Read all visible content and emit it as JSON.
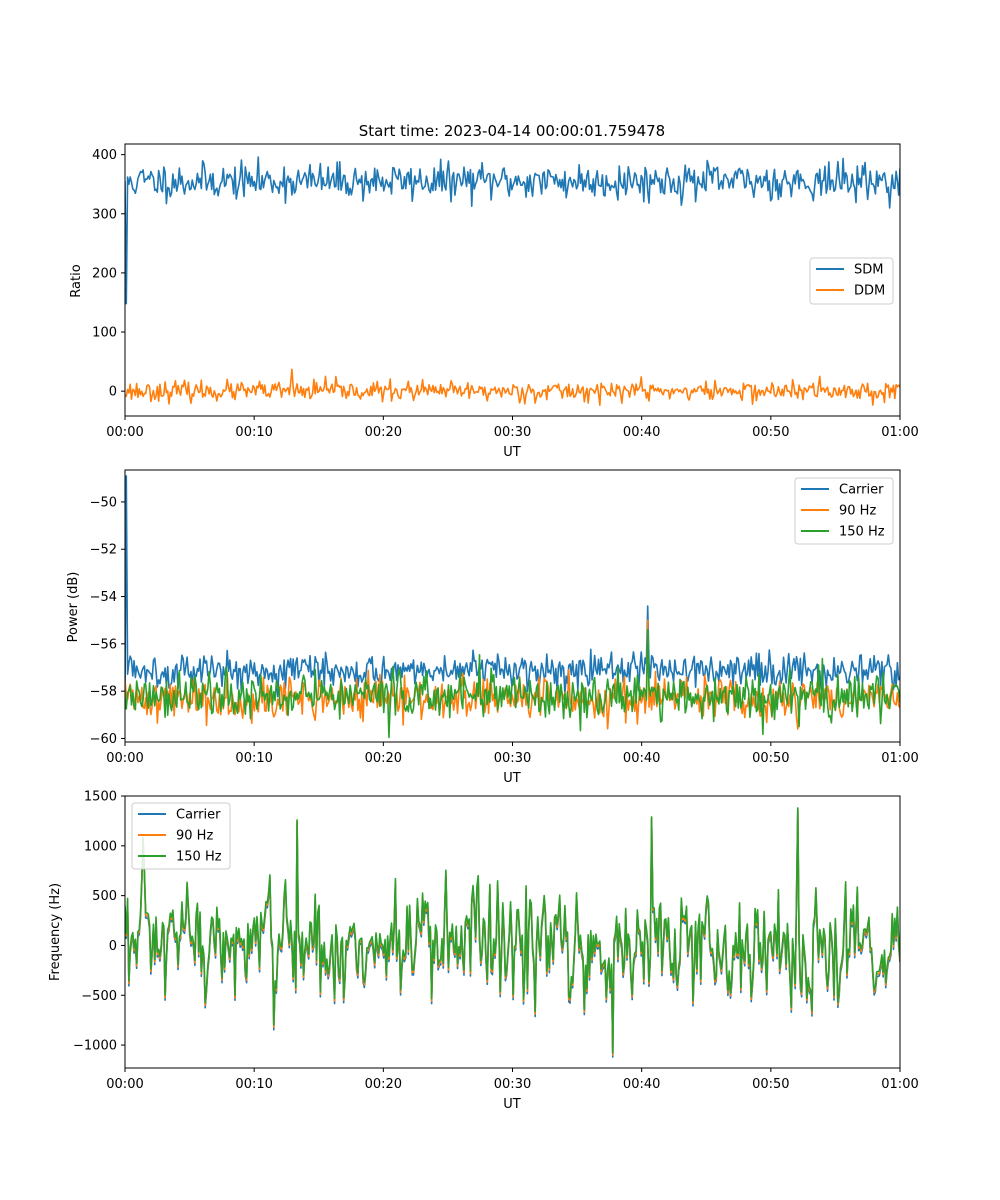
{
  "figure": {
    "title": "Start time: 2023-04-14 00:00:01.759478"
  },
  "chart_data": [
    {
      "type": "line",
      "xlabel": "UT",
      "ylabel": "Ratio",
      "xlim_minutes": [
        0,
        60
      ],
      "x_tick_labels": [
        "00:00",
        "00:10",
        "00:20",
        "00:30",
        "00:40",
        "00:50",
        "01:00"
      ],
      "ylim": [
        -42,
        418
      ],
      "y_ticks": [
        0,
        100,
        200,
        300,
        400
      ],
      "y_tick_labels": [
        "0",
        "100",
        "200",
        "300",
        "400"
      ],
      "legend": {
        "position": "center-right",
        "entries": [
          "SDM",
          "DDM"
        ]
      },
      "grid": false,
      "series": [
        {
          "name": "SDM",
          "color": "#1f77b4",
          "base": 355,
          "noise": 15,
          "seed": 11,
          "points": [
            [
              0,
              355
            ],
            [
              0.12,
              148
            ],
            [
              0.35,
              350
            ],
            [
              0.7,
              340
            ],
            [
              1.0,
              360
            ]
          ]
        },
        {
          "name": "DDM",
          "color": "#ff7f0e",
          "base": 0,
          "noise": 8,
          "seed": 23,
          "points": [
            [
              12.9,
              37
            ],
            [
              15.5,
              25
            ],
            [
              40,
              24
            ],
            [
              53.8,
              25
            ],
            [
              59.9,
              10
            ]
          ]
        }
      ]
    },
    {
      "type": "line",
      "xlabel": "UT",
      "ylabel": "Power (dB)",
      "xlim_minutes": [
        0,
        60
      ],
      "x_tick_labels": [
        "00:00",
        "00:10",
        "00:20",
        "00:30",
        "00:40",
        "00:50",
        "01:00"
      ],
      "ylim": [
        -60.15,
        -48.65
      ],
      "y_ticks": [
        -60,
        -58,
        -56,
        -54,
        -52,
        -50
      ],
      "y_tick_labels": [
        "−60",
        "−58",
        "−56",
        "−54",
        "−52",
        "−50"
      ],
      "legend": {
        "position": "top-right",
        "entries": [
          "Carrier",
          "90 Hz",
          "150 Hz"
        ]
      },
      "grid": false,
      "series": [
        {
          "name": "Carrier",
          "color": "#1f77b4",
          "base": -57.1,
          "noise": 0.35,
          "seed": 5,
          "points": [
            [
              0,
              -58.3
            ],
            [
              0.12,
              -48.9
            ],
            [
              0.3,
              -56.8
            ],
            [
              40.5,
              -54.4
            ],
            [
              40.8,
              -56.5
            ]
          ]
        },
        {
          "name": "90 Hz",
          "color": "#ff7f0e",
          "base": -58.3,
          "noise": 0.45,
          "seed": 41,
          "points": [
            [
              40.5,
              -55.0
            ],
            [
              52.1,
              -59.6
            ]
          ]
        },
        {
          "name": "150 Hz",
          "color": "#2ca02c",
          "base": -58.2,
          "noise": 0.5,
          "seed": 77,
          "points": [
            [
              40.5,
              -55.4
            ],
            [
              41.5,
              -59.3
            ],
            [
              52.2,
              -59.5
            ]
          ]
        }
      ]
    },
    {
      "type": "line",
      "xlabel": "UT",
      "ylabel": "Frequency (Hz)",
      "xlim_minutes": [
        0,
        60
      ],
      "x_tick_labels": [
        "00:00",
        "00:10",
        "00:20",
        "00:30",
        "00:40",
        "00:50",
        "01:00"
      ],
      "ylim": [
        -1230,
        1500
      ],
      "y_ticks": [
        -1000,
        -500,
        0,
        500,
        1000,
        1500
      ],
      "y_tick_labels": [
        "−1000",
        "−500",
        "0",
        "500",
        "1000",
        "1500"
      ],
      "legend": {
        "position": "top-left",
        "entries": [
          "Carrier",
          "90 Hz",
          "150 Hz"
        ]
      },
      "grid": false,
      "series": [
        {
          "name": "Carrier",
          "color": "#1f77b4",
          "base": -40,
          "noise": 420,
          "seed": 97,
          "offset": -40,
          "points": [
            [
              13.3,
              1240
            ],
            [
              37.8,
              -1120
            ],
            [
              40.8,
              1270
            ],
            [
              52.1,
              1360
            ]
          ]
        },
        {
          "name": "90 Hz",
          "color": "#ff7f0e",
          "base": -15,
          "noise": 420,
          "seed": 97,
          "offset": -15,
          "points": [
            [
              13.3,
              1250
            ],
            [
              37.8,
              -1100
            ],
            [
              40.8,
              1280
            ],
            [
              52.1,
              1370
            ]
          ]
        },
        {
          "name": "150 Hz",
          "color": "#2ca02c",
          "base": 10,
          "noise": 420,
          "seed": 97,
          "offset": 10,
          "points": [
            [
              13.3,
              1260
            ],
            [
              37.8,
              -1080
            ],
            [
              40.8,
              1290
            ],
            [
              52.1,
              1380
            ]
          ]
        }
      ]
    }
  ]
}
